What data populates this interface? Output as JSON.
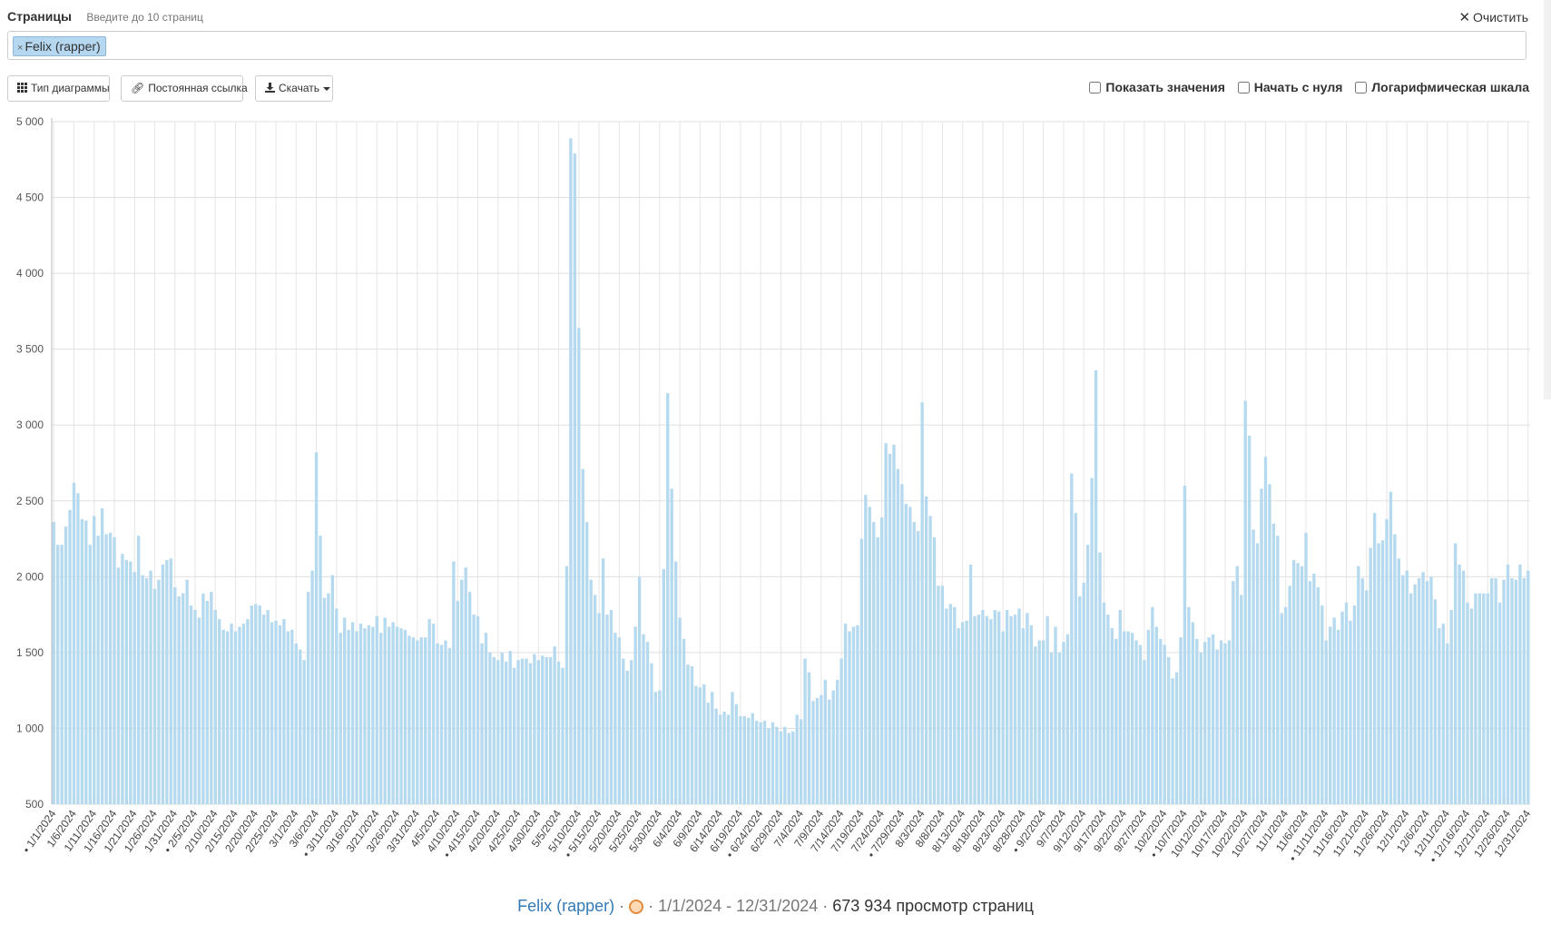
{
  "header": {
    "pages_label": "Страницы",
    "pages_hint": "Введите до 10 страниц",
    "clear_label": "Очистить"
  },
  "tags": [
    {
      "label": "Felix (rapper)",
      "remove": "×"
    }
  ],
  "toolbar": {
    "chart_type_label": "Тип диаграммы",
    "permalink_label": "Постоянная ссылка",
    "download_label": "Скачать"
  },
  "options": {
    "show_values": "Показать значения",
    "begin_zero": "Начать с нуля",
    "log_scale": "Логарифмическая шкала"
  },
  "chart_data": {
    "type": "bar",
    "series_color": "#b5d9ef",
    "ylim": [
      500,
      5000
    ],
    "y_ticks": [
      "5 000",
      "4 500",
      "4 000",
      "3 500",
      "3 000",
      "2 500",
      "2 000",
      "1 500",
      "1 000",
      "500"
    ],
    "y_tick_values": [
      5000,
      4500,
      4000,
      3500,
      3000,
      2500,
      2000,
      1500,
      1000,
      500
    ],
    "start_date": "1/1/2024",
    "end_date": "12/31/2024",
    "x_labels": [
      "• 1/1/2024",
      "1/6/2024",
      "1/11/2024",
      "1/16/2024",
      "1/21/2024",
      "1/26/2024",
      "1/31/2024",
      "• 2/5/2024",
      "2/10/2024",
      "2/15/2024",
      "2/20/2024",
      "2/25/2024",
      "3/1/2024",
      "3/6/2024",
      "• 3/11/2024",
      "3/16/2024",
      "3/21/2024",
      "3/26/2024",
      "3/31/2024",
      "4/5/2024",
      "4/10/2024",
      "• 4/15/2024",
      "4/20/2024",
      "4/25/2024",
      "4/30/2024",
      "5/5/2024",
      "5/10/2024",
      "• 5/15/2024",
      "5/20/2024",
      "5/25/2024",
      "5/30/2024",
      "6/4/2024",
      "6/9/2024",
      "6/14/2024",
      "6/19/2024",
      "• 6/24/2024",
      "6/29/2024",
      "7/4/2024",
      "7/9/2024",
      "7/14/2024",
      "7/19/2024",
      "7/24/2024",
      "• 7/29/2024",
      "8/3/2024",
      "8/8/2024",
      "8/13/2024",
      "8/18/2024",
      "8/23/2024",
      "8/28/2024",
      "• 9/2/2024",
      "9/7/2024",
      "9/12/2024",
      "9/17/2024",
      "9/22/2024",
      "9/27/2024",
      "10/2/2024",
      "• 10/7/2024",
      "10/12/2024",
      "10/17/2024",
      "10/22/2024",
      "10/27/2024",
      "11/1/2024",
      "11/6/2024",
      "• 11/11/2024",
      "11/16/2024",
      "11/21/2024",
      "11/26/2024",
      "12/1/2024",
      "12/6/2024",
      "12/11/2024",
      "• 12/16/2024",
      "12/21/2024",
      "12/26/2024",
      "12/31/2024"
    ],
    "values": [
      2360,
      2210,
      2210,
      2330,
      2440,
      2620,
      2550,
      2380,
      2370,
      2210,
      2400,
      2270,
      2450,
      2280,
      2290,
      2260,
      2060,
      2150,
      2110,
      2100,
      2030,
      2270,
      2010,
      1990,
      2040,
      1920,
      1980,
      2080,
      2110,
      2120,
      1930,
      1870,
      1890,
      1980,
      1810,
      1780,
      1730,
      1890,
      1840,
      1900,
      1780,
      1720,
      1650,
      1640,
      1690,
      1640,
      1670,
      1690,
      1720,
      1810,
      1820,
      1810,
      1750,
      1780,
      1700,
      1710,
      1680,
      1720,
      1640,
      1650,
      1560,
      1520,
      1450,
      1900,
      2040,
      2820,
      2270,
      1860,
      1890,
      2010,
      1790,
      1630,
      1730,
      1650,
      1700,
      1640,
      1690,
      1660,
      1680,
      1670,
      1740,
      1630,
      1730,
      1670,
      1700,
      1670,
      1660,
      1650,
      1610,
      1600,
      1580,
      1600,
      1600,
      1720,
      1690,
      1560,
      1550,
      1580,
      1530,
      2100,
      1840,
      1980,
      2060,
      1900,
      1750,
      1740,
      1560,
      1630,
      1500,
      1470,
      1450,
      1500,
      1440,
      1510,
      1400,
      1450,
      1460,
      1460,
      1430,
      1490,
      1450,
      1480,
      1470,
      1470,
      1540,
      1440,
      1400,
      2070,
      4890,
      4790,
      3640,
      2710,
      2360,
      1980,
      1880,
      1760,
      2120,
      1750,
      1780,
      1630,
      1600,
      1460,
      1380,
      1450,
      1670,
      2000,
      1620,
      1570,
      1430,
      1240,
      1250,
      2050,
      3210,
      2580,
      2100,
      1730,
      1590,
      1420,
      1410,
      1280,
      1270,
      1290,
      1170,
      1240,
      1130,
      1090,
      1110,
      1090,
      1240,
      1160,
      1080,
      1080,
      1070,
      1100,
      1050,
      1040,
      1050,
      1000,
      1040,
      1010,
      980,
      1010,
      970,
      980,
      1090,
      1060,
      1460,
      1370,
      1180,
      1200,
      1220,
      1320,
      1190,
      1250,
      1320,
      1460,
      1690,
      1640,
      1670,
      1680,
      2250,
      2540,
      2460,
      2360,
      2260,
      2390,
      2880,
      2810,
      2870,
      2710,
      2610,
      2480,
      2460,
      2360,
      2300,
      3150,
      2530,
      2400,
      2260,
      1940,
      1940,
      1790,
      1820,
      1800,
      1660,
      1700,
      1710,
      2080,
      1740,
      1750,
      1780,
      1740,
      1720,
      1780,
      1770,
      1640,
      1780,
      1740,
      1750,
      1790,
      1660,
      1760,
      1680,
      1540,
      1580,
      1580,
      1740,
      1500,
      1670,
      1500,
      1570,
      1620,
      2680,
      2420,
      1870,
      1960,
      2210,
      2650,
      3360,
      2160,
      1830,
      1750,
      1660,
      1590,
      1780,
      1640,
      1640,
      1630,
      1580,
      1550,
      1450,
      1650,
      1800,
      1670,
      1590,
      1550,
      1470,
      1330,
      1370,
      1600,
      2600,
      1800,
      1700,
      1590,
      1500,
      1570,
      1600,
      1620,
      1520,
      1580,
      1560,
      1580,
      1970,
      2070,
      1880,
      3160,
      2930,
      2310,
      2220,
      2580,
      2790,
      2610,
      2350,
      2270,
      1760,
      1800,
      1940,
      2110,
      2090,
      2070,
      2290,
      1970,
      2020,
      1930,
      1810,
      1580,
      1670,
      1730,
      1650,
      1770,
      1830,
      1710,
      1810,
      2070,
      1990,
      1910,
      2190,
      2420,
      2220,
      2240,
      2380,
      2560,
      2280,
      2120,
      2010,
      2040,
      1890,
      1950,
      1990,
      2030,
      1970,
      2000,
      1850,
      1660,
      1690,
      1560,
      1780,
      2220,
      2080,
      2040,
      1830,
      1790,
      1890,
      1890,
      1890,
      1890,
      1990,
      1990,
      1830,
      1980,
      2080,
      1990,
      1980,
      2080,
      1990,
      2040
    ]
  },
  "legend": {
    "article": "Felix (rapper)",
    "sep1": " · ",
    "sep2": " · ",
    "range": "1/1/2024 - 12/31/2024",
    "sep3": " · ",
    "views": "673 934 просмотр страниц"
  }
}
